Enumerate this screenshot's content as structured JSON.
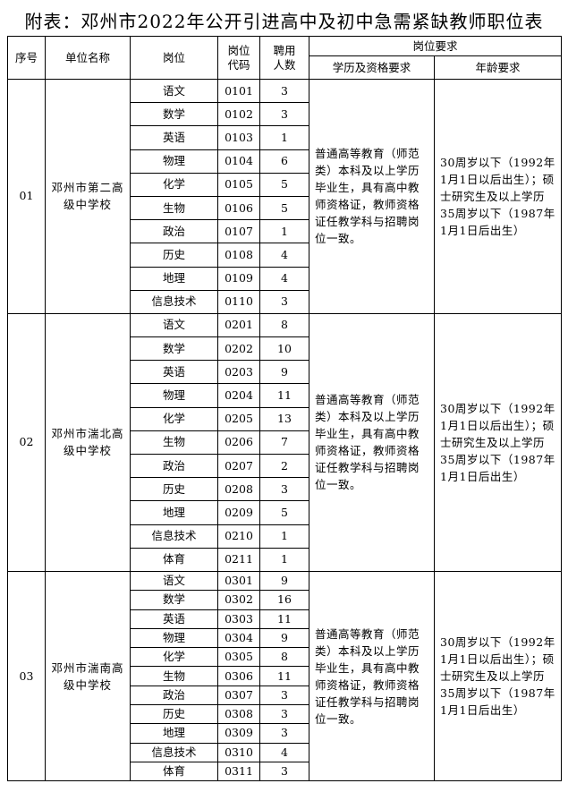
{
  "title": "附表：邓州市2022年公开引进高中及初中急需紧缺教师职位表",
  "headers": {
    "seq": "序号",
    "unit": "单位名称",
    "post": "岗位",
    "code": "岗位代码",
    "count": "聘用人数",
    "requirements": "岗位要求",
    "education": "学历及资格要求",
    "age": "年龄要求"
  },
  "groups": [
    {
      "seq": "01",
      "unit": "邓州市第二高级中学校",
      "education": "普通高等教育（师范类）本科及以上学历毕业生，具有高中教师资格证，教师资格证任教学科与招聘岗位一致。",
      "age": "30周岁以下（1992年1月1日以后出生）；硕士研究生及以上学历35周岁以下（1987年1月1日后出生）",
      "posts": [
        {
          "post": "语文",
          "code": "0101",
          "count": "3"
        },
        {
          "post": "数学",
          "code": "0102",
          "count": "3"
        },
        {
          "post": "英语",
          "code": "0103",
          "count": "1"
        },
        {
          "post": "物理",
          "code": "0104",
          "count": "6"
        },
        {
          "post": "化学",
          "code": "0105",
          "count": "5"
        },
        {
          "post": "生物",
          "code": "0106",
          "count": "5"
        },
        {
          "post": "政治",
          "code": "0107",
          "count": "1"
        },
        {
          "post": "历史",
          "code": "0108",
          "count": "4"
        },
        {
          "post": "地理",
          "code": "0109",
          "count": "4"
        },
        {
          "post": "信息技术",
          "code": "0110",
          "count": "3"
        }
      ]
    },
    {
      "seq": "02",
      "unit": "邓州市湍北高级中学校",
      "education": "普通高等教育（师范类）本科及以上学历毕业生，具有高中教师资格证，教师资格证任教学科与招聘岗位一致。",
      "age": "30周岁以下（1992年1月1日以后出生）；硕士研究生及以上学历35周岁以下（1987年1月1日后出生）",
      "posts": [
        {
          "post": "语文",
          "code": "0201",
          "count": "8"
        },
        {
          "post": "数学",
          "code": "0202",
          "count": "10"
        },
        {
          "post": "英语",
          "code": "0203",
          "count": "9"
        },
        {
          "post": "物理",
          "code": "0204",
          "count": "11"
        },
        {
          "post": "化学",
          "code": "0205",
          "count": "13"
        },
        {
          "post": "生物",
          "code": "0206",
          "count": "7"
        },
        {
          "post": "政治",
          "code": "0207",
          "count": "2"
        },
        {
          "post": "历史",
          "code": "0208",
          "count": "3"
        },
        {
          "post": "地理",
          "code": "0209",
          "count": "5"
        },
        {
          "post": "信息技术",
          "code": "0210",
          "count": "1"
        },
        {
          "post": "体育",
          "code": "0211",
          "count": "1"
        }
      ]
    },
    {
      "seq": "03",
      "unit": "邓州市湍南高级中学校",
      "education": "普通高等教育（师范类）本科及以上学历毕业生，具有高中教师资格证，教师资格证任教学科与招聘岗位一致。",
      "age": "30周岁以下（1992年1月1日以后出生）；硕士研究生及以上学历35周岁以下（1987年1月1日后出生）",
      "posts": [
        {
          "post": "语文",
          "code": "0301",
          "count": "9"
        },
        {
          "post": "数学",
          "code": "0302",
          "count": "16"
        },
        {
          "post": "英语",
          "code": "0303",
          "count": "11"
        },
        {
          "post": "物理",
          "code": "0304",
          "count": "9"
        },
        {
          "post": "化学",
          "code": "0305",
          "count": "8"
        },
        {
          "post": "生物",
          "code": "0306",
          "count": "11"
        },
        {
          "post": "政治",
          "code": "0307",
          "count": "3"
        },
        {
          "post": "历史",
          "code": "0308",
          "count": "3"
        },
        {
          "post": "地理",
          "code": "0309",
          "count": "3"
        },
        {
          "post": "信息技术",
          "code": "0310",
          "count": "4"
        },
        {
          "post": "体育",
          "code": "0311",
          "count": "3"
        }
      ]
    }
  ]
}
